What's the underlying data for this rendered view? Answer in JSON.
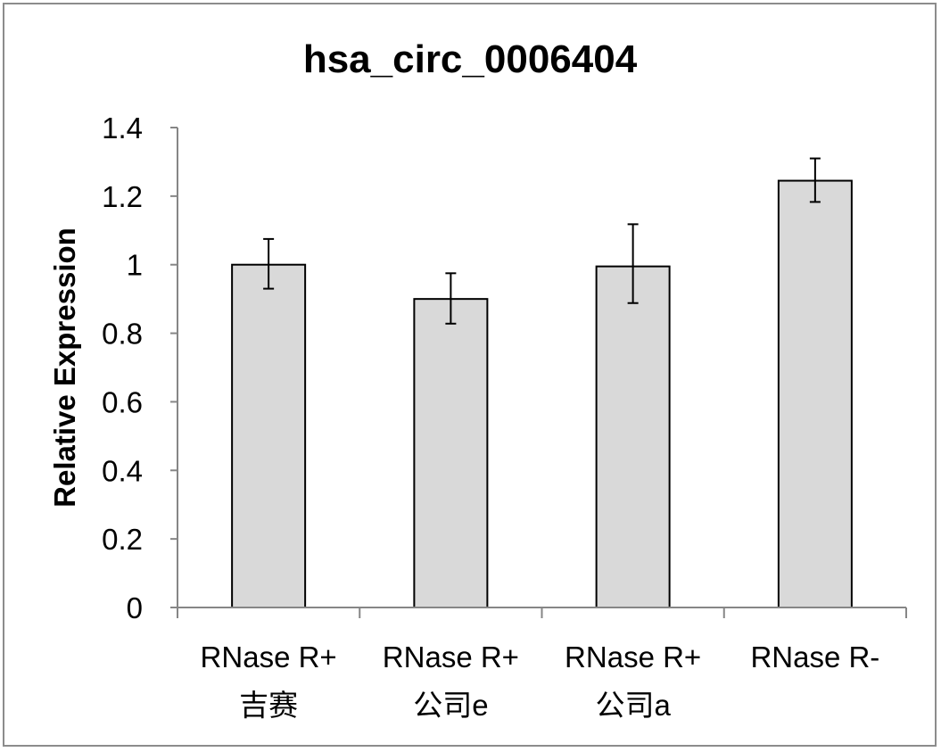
{
  "chart_data": {
    "type": "bar",
    "title": "hsa_circ_0006404",
    "xlabel": "",
    "ylabel": "Relative Expression",
    "ylim": [
      0,
      1.4
    ],
    "yticks": [
      "0",
      "0.2",
      "0.4",
      "0.6",
      "0.8",
      "1",
      "1.2",
      "1.4"
    ],
    "grid": false,
    "legend": "none",
    "bar_color": "#d9d9d9",
    "bar_edge_color": "#000000",
    "categories": [
      [
        "RNase R+",
        "吉赛"
      ],
      [
        "RNase R+",
        "公司e"
      ],
      [
        "RNase R+",
        "公司a"
      ],
      [
        "RNase R-"
      ]
    ],
    "values": [
      1.0,
      0.9,
      0.995,
      1.245
    ],
    "error_bars": [
      [
        0.93,
        1.075
      ],
      [
        0.828,
        0.975
      ],
      [
        0.888,
        1.118
      ],
      [
        1.183,
        1.31
      ]
    ]
  }
}
